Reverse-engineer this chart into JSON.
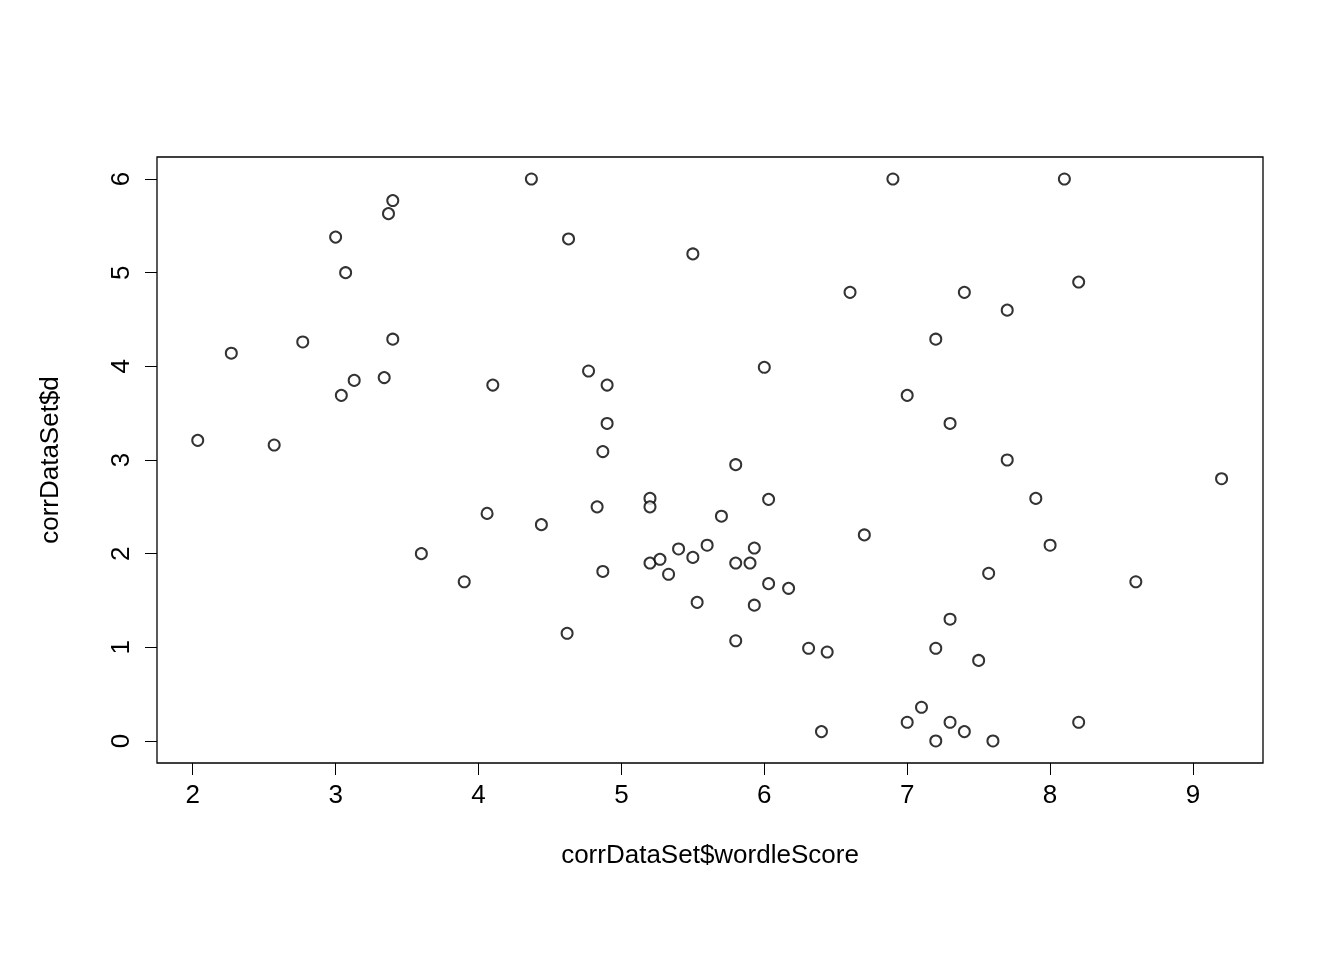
{
  "chart_data": {
    "type": "scatter",
    "xlabel": "corrDataSet$wordleScore",
    "ylabel": "corrDataSet$d",
    "x": [
      2.035,
      2.27,
      2.57,
      2.77,
      3.0,
      3.04,
      3.07,
      3.13,
      3.34,
      3.37,
      3.4,
      3.4,
      3.6,
      3.9,
      4.06,
      4.1,
      4.37,
      4.44,
      4.62,
      4.63,
      4.77,
      4.83,
      4.87,
      4.87,
      4.9,
      4.9,
      5.2,
      5.2,
      5.2,
      5.27,
      5.33,
      5.4,
      5.5,
      5.5,
      5.53,
      5.6,
      5.7,
      5.8,
      5.8,
      5.8,
      5.9,
      5.93,
      5.93,
      6.0,
      6.03,
      6.03,
      6.17,
      6.31,
      6.4,
      6.44,
      6.6,
      6.7,
      6.9,
      7.0,
      7.0,
      7.1,
      7.2,
      7.2,
      7.2,
      7.3,
      7.3,
      7.3,
      7.4,
      7.4,
      7.5,
      7.57,
      7.6,
      7.7,
      7.7,
      7.9,
      8.0,
      8.1,
      8.2,
      8.2,
      8.6,
      9.2
    ],
    "values": [
      3.21,
      4.14,
      3.16,
      4.26,
      5.38,
      3.69,
      5.0,
      3.85,
      3.88,
      5.63,
      5.77,
      4.29,
      2.0,
      1.7,
      2.43,
      3.8,
      6.0,
      2.31,
      1.15,
      5.36,
      3.95,
      2.5,
      1.81,
      3.09,
      3.8,
      3.39,
      2.59,
      2.5,
      1.9,
      1.94,
      1.78,
      2.05,
      5.2,
      1.96,
      1.48,
      2.09,
      2.4,
      2.95,
      1.9,
      1.07,
      1.9,
      2.06,
      1.45,
      3.99,
      2.58,
      1.68,
      1.63,
      0.99,
      0.1,
      0.95,
      4.79,
      2.2,
      6.0,
      3.69,
      0.2,
      0.36,
      4.29,
      0.99,
      0.0,
      3.39,
      1.3,
      0.2,
      4.79,
      0.1,
      0.86,
      1.79,
      0.0,
      4.6,
      3.0,
      2.59,
      2.09,
      6.0,
      4.9,
      0.2,
      1.7,
      2.8
    ],
    "color": "#000000",
    "marker": "circle",
    "xlim": [
      1.75,
      9.49
    ],
    "xticks": [
      2,
      3,
      4,
      5,
      6,
      7,
      8,
      9
    ],
    "ylim": [
      -0.235,
      6.235
    ],
    "yticks": [
      0,
      1,
      2,
      3,
      4,
      5,
      6
    ]
  }
}
